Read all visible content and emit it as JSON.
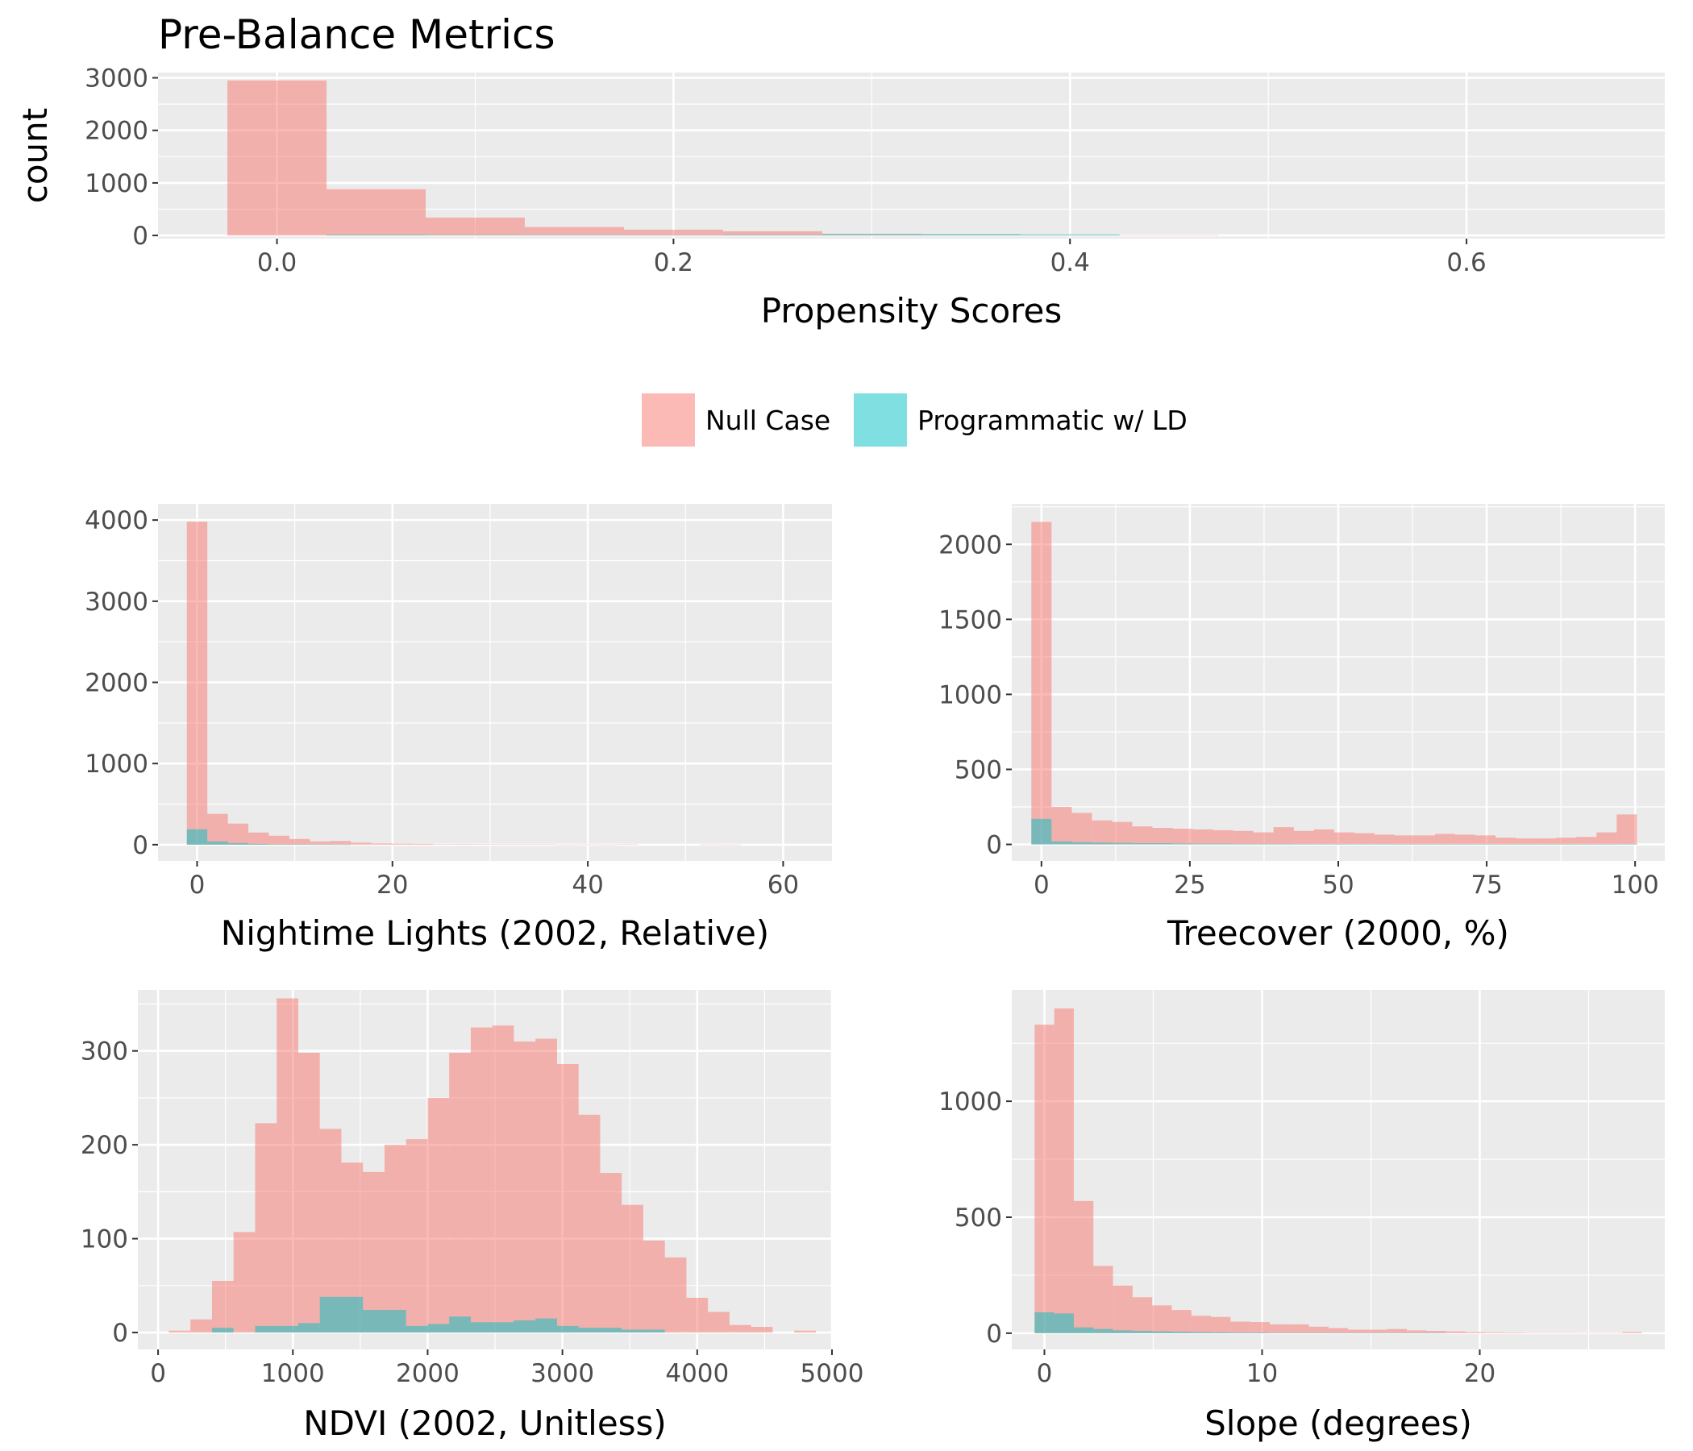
{
  "title": "Pre-Balance Metrics",
  "legend": {
    "placement": "center",
    "items": [
      {
        "label": "Null Case",
        "color": "#F8766D"
      },
      {
        "label": "Programmatic w/ LD",
        "color": "#00BFC4"
      }
    ]
  },
  "colors": {
    "panel_bg": "#EBEBEB",
    "grid": "#FFFFFF",
    "tick_label": "#4D4D4D",
    "bar_alpha": 0.5
  },
  "chart_data": [
    {
      "type": "histogram",
      "xlabel": "Propensity Scores",
      "ylabel": "count",
      "xlim": [
        -0.06,
        0.7
      ],
      "ylim": [
        -60,
        3100
      ],
      "xticks": [
        0.0,
        0.2,
        0.4,
        0.6
      ],
      "xtick_labels": [
        "0.0",
        "0.2",
        "0.4",
        "0.6"
      ],
      "yticks": [
        0,
        1000,
        2000,
        3000
      ],
      "ytick_labels": [
        "0",
        "1000",
        "2000",
        "3000"
      ],
      "binwidth": 0.05,
      "bin_starts": [
        -0.025,
        0.025,
        0.075,
        0.125,
        0.175,
        0.225,
        0.275,
        0.325,
        0.375,
        0.425
      ],
      "series": [
        {
          "name": "Null Case",
          "values": [
            2950,
            880,
            340,
            160,
            110,
            80,
            30,
            20,
            10,
            5
          ]
        },
        {
          "name": "Programmatic w/ LD",
          "values": [
            0,
            15,
            10,
            8,
            6,
            12,
            25,
            25,
            20,
            0
          ]
        }
      ]
    },
    {
      "type": "histogram",
      "xlabel": "Nightime Lights (2002, Relative)",
      "ylabel": "",
      "xlim": [
        -4,
        65
      ],
      "ylim": [
        -200,
        4200
      ],
      "xticks": [
        0,
        20,
        40,
        60
      ],
      "xtick_labels": [
        "0",
        "20",
        "40",
        "60"
      ],
      "yticks": [
        0,
        1000,
        2000,
        3000,
        4000
      ],
      "ytick_labels": [
        "0",
        "1000",
        "2000",
        "3000",
        "4000"
      ],
      "binwidth": 2.1,
      "bin_starts": [
        -1.05,
        1.05,
        3.15,
        5.25,
        7.35,
        9.45,
        11.55,
        13.65,
        15.75,
        17.85,
        19.95,
        22.05,
        24.15,
        26.25,
        28.35,
        30.45,
        32.55,
        34.65,
        36.75,
        38.85,
        40.95,
        43.05,
        45.15,
        47.25,
        49.35,
        51.45,
        53.55
      ],
      "series": [
        {
          "name": "Null Case",
          "values": [
            3980,
            380,
            260,
            150,
            110,
            70,
            40,
            45,
            25,
            15,
            12,
            10,
            5,
            6,
            4,
            3,
            3,
            3,
            1,
            2,
            1,
            3,
            0,
            0,
            0,
            2,
            1
          ]
        },
        {
          "name": "Programmatic w/ LD",
          "values": [
            190,
            40,
            20,
            10,
            5,
            3,
            2,
            1,
            0,
            0,
            0,
            0,
            0,
            0,
            0,
            0,
            0,
            0,
            0,
            0,
            0,
            0,
            0,
            0,
            0,
            0,
            0
          ]
        }
      ]
    },
    {
      "type": "histogram",
      "xlabel": "Treecover (2000, %)",
      "ylabel": "",
      "xlim": [
        -5,
        105
      ],
      "ylim": [
        -110,
        2270
      ],
      "xticks": [
        0,
        25,
        50,
        75,
        100
      ],
      "xtick_labels": [
        "0",
        "25",
        "50",
        "75",
        "100"
      ],
      "yticks": [
        0,
        500,
        1000,
        1500,
        2000
      ],
      "ytick_labels": [
        "0",
        "500",
        "1000",
        "1500",
        "2000"
      ],
      "binwidth": 3.4,
      "bin_starts": [
        -1.7,
        1.7,
        5.1,
        8.5,
        11.9,
        15.3,
        18.7,
        22.1,
        25.5,
        28.9,
        32.3,
        35.7,
        39.1,
        42.5,
        45.9,
        49.3,
        52.7,
        56.1,
        59.5,
        62.9,
        66.3,
        69.7,
        73.1,
        76.5,
        79.9,
        83.3,
        86.7,
        90.1,
        93.5,
        96.9
      ],
      "series": [
        {
          "name": "Null Case",
          "values": [
            2150,
            250,
            210,
            160,
            150,
            120,
            110,
            105,
            100,
            95,
            90,
            80,
            115,
            90,
            100,
            80,
            75,
            65,
            60,
            60,
            70,
            65,
            60,
            45,
            40,
            40,
            45,
            50,
            80,
            200
          ]
        },
        {
          "name": "Programmatic w/ LD",
          "values": [
            170,
            20,
            15,
            12,
            10,
            8,
            8,
            6,
            5,
            5,
            4,
            4,
            4,
            3,
            3,
            3,
            3,
            3,
            2,
            2,
            2,
            2,
            2,
            2,
            2,
            2,
            2,
            2,
            2,
            3
          ]
        }
      ]
    },
    {
      "type": "histogram",
      "xlabel": "NDVI (2002, Unitless)",
      "ylabel": "",
      "xlim": [
        -150,
        5000
      ],
      "ylim": [
        -18,
        365
      ],
      "xticks": [
        0,
        1000,
        2000,
        3000,
        4000,
        5000
      ],
      "xtick_labels": [
        "0",
        "1000",
        "2000",
        "3000",
        "4000",
        "5000"
      ],
      "yticks": [
        0,
        100,
        200,
        300
      ],
      "ytick_labels": [
        "0",
        "100",
        "200",
        "300"
      ],
      "binwidth": 160,
      "bin_starts": [
        80,
        240,
        400,
        560,
        720,
        880,
        1040,
        1200,
        1360,
        1520,
        1680,
        1840,
        2000,
        2160,
        2320,
        2480,
        2640,
        2800,
        2960,
        3120,
        3280,
        3440,
        3600,
        3760,
        3920,
        4080,
        4240,
        4400,
        4560,
        4720
      ],
      "series": [
        {
          "name": "Null Case",
          "values": [
            2,
            14,
            55,
            107,
            223,
            356,
            298,
            217,
            181,
            171,
            200,
            206,
            250,
            298,
            325,
            327,
            310,
            313,
            286,
            232,
            170,
            136,
            98,
            80,
            37,
            22,
            8,
            6,
            0,
            2
          ]
        },
        {
          "name": "Programmatic w/ LD",
          "values": [
            0,
            0,
            5,
            0,
            7,
            7,
            10,
            38,
            38,
            24,
            24,
            7,
            9,
            17,
            11,
            11,
            13,
            15,
            7,
            5,
            5,
            3,
            3,
            0,
            0,
            0,
            0,
            0,
            0,
            0
          ]
        }
      ]
    },
    {
      "type": "histogram",
      "xlabel": "Slope (degrees)",
      "ylabel": "",
      "xlim": [
        -1.5,
        28.5
      ],
      "ylim": [
        -70,
        1480
      ],
      "xticks": [
        0,
        10,
        20
      ],
      "xtick_labels": [
        "0",
        "10",
        "20"
      ],
      "yticks": [
        0,
        500,
        1000
      ],
      "ytick_labels": [
        "0",
        "500",
        "1000"
      ],
      "binwidth": 0.9,
      "bin_starts": [
        -0.45,
        0.45,
        1.35,
        2.25,
        3.15,
        4.05,
        4.95,
        5.85,
        6.75,
        7.65,
        8.55,
        9.45,
        10.35,
        11.25,
        12.15,
        13.05,
        13.95,
        14.85,
        15.75,
        16.65,
        17.55,
        18.45,
        19.35,
        20.25,
        21.15,
        22.05,
        22.95,
        23.85,
        24.75,
        25.65,
        26.55
      ],
      "series": [
        {
          "name": "Null Case",
          "values": [
            1330,
            1400,
            570,
            290,
            205,
            155,
            120,
            100,
            75,
            70,
            50,
            48,
            38,
            38,
            28,
            22,
            15,
            15,
            18,
            12,
            10,
            8,
            5,
            4,
            3,
            2,
            2,
            2,
            1,
            1,
            5
          ]
        },
        {
          "name": "Programmatic w/ LD",
          "values": [
            90,
            85,
            25,
            18,
            12,
            10,
            8,
            6,
            5,
            4,
            3,
            3,
            2,
            2,
            2,
            1,
            1,
            1,
            1,
            1,
            1,
            0,
            0,
            0,
            0,
            0,
            0,
            0,
            0,
            0,
            0
          ]
        }
      ]
    }
  ]
}
